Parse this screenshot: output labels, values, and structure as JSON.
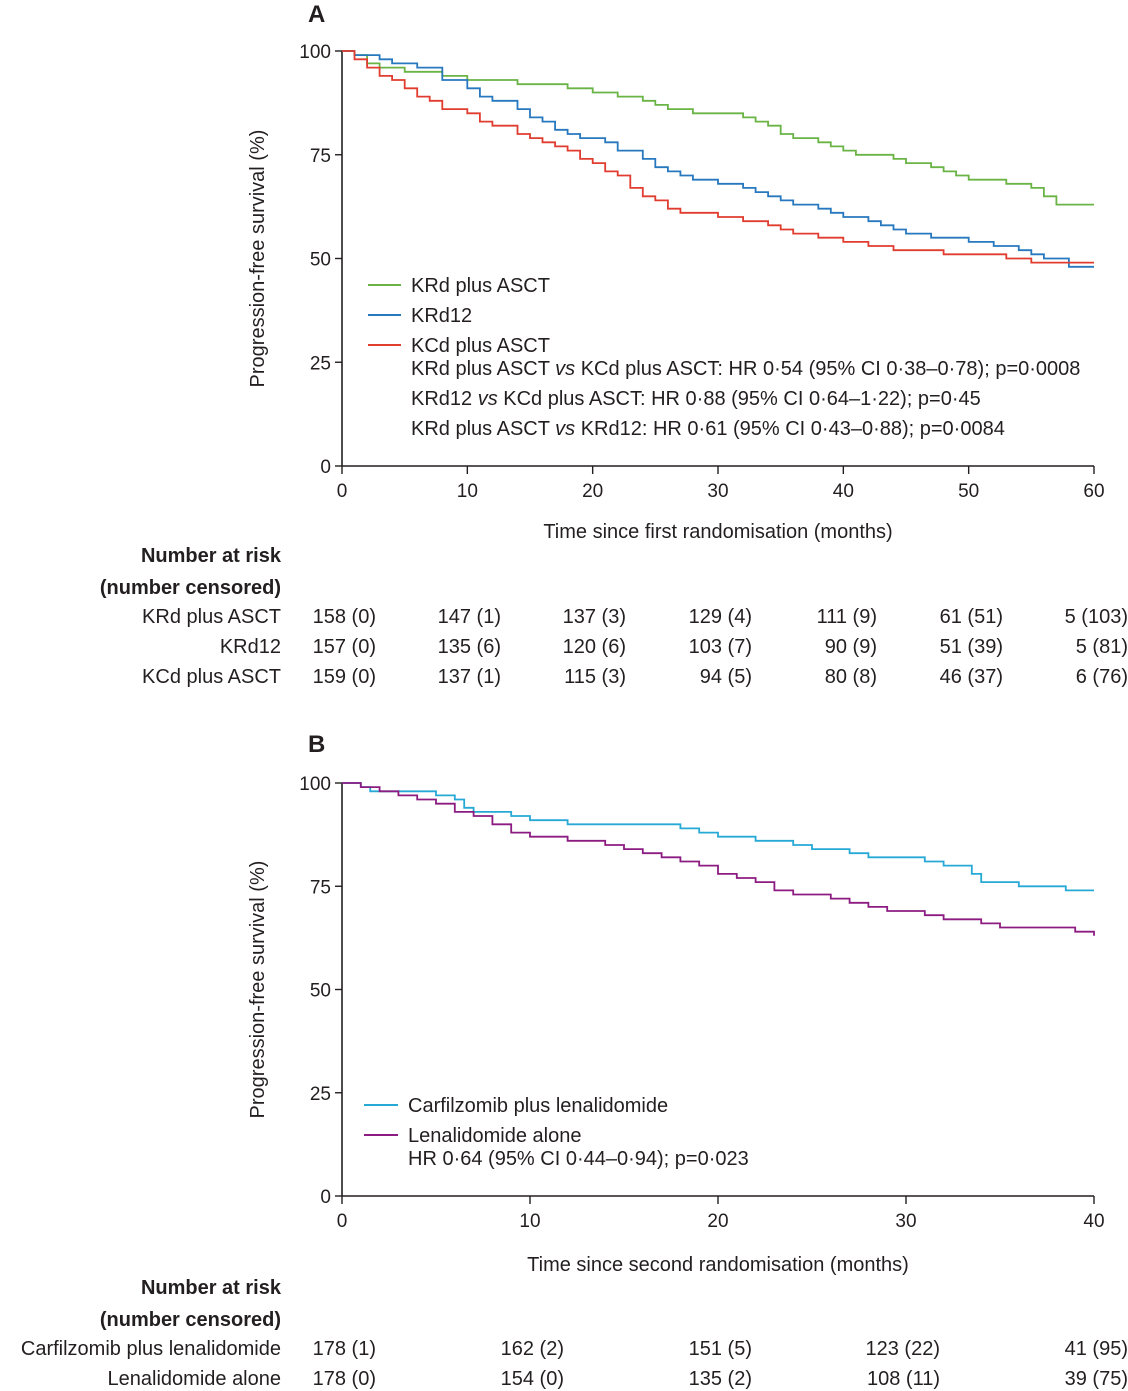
{
  "chart_data": [
    {
      "panel": "A",
      "type": "line",
      "step": true,
      "xlabel": "Time since first randomisation (months)",
      "ylabel": "Progression-free survival (%)",
      "xlim": [
        0,
        60
      ],
      "ylim": [
        0,
        100
      ],
      "xticks": [
        0,
        10,
        20,
        30,
        40,
        50,
        60
      ],
      "yticks": [
        0,
        25,
        50,
        75,
        100
      ],
      "series": [
        {
          "name": "KRd plus ASCT",
          "color": "#6ab345",
          "x": [
            0,
            1,
            2,
            3,
            4,
            5,
            6,
            8,
            10,
            12,
            14,
            16,
            18,
            20,
            22,
            24,
            25,
            26,
            27,
            28,
            30,
            32,
            33,
            34,
            35,
            36,
            37,
            38,
            39,
            40,
            41,
            42,
            44,
            45,
            46,
            47,
            48,
            49,
            50,
            52,
            53,
            54,
            55,
            56,
            57,
            58,
            60
          ],
          "y": [
            100,
            99,
            97,
            96,
            96,
            95,
            95,
            94,
            93,
            93,
            92,
            92,
            91,
            90,
            89,
            88,
            87,
            86,
            86,
            85,
            85,
            84,
            83,
            82,
            80,
            79,
            79,
            78,
            77,
            76,
            75,
            75,
            74,
            73,
            73,
            72,
            71,
            70,
            69,
            69,
            68,
            68,
            67,
            65,
            63,
            63,
            63
          ]
        },
        {
          "name": "KRd12",
          "color": "#2778be",
          "x": [
            0,
            1,
            2,
            3,
            4,
            6,
            8,
            10,
            11,
            12,
            14,
            15,
            16,
            17,
            18,
            19,
            20,
            21,
            22,
            23,
            24,
            25,
            26,
            27,
            28,
            30,
            32,
            33,
            34,
            35,
            36,
            38,
            39,
            40,
            42,
            43,
            44,
            45,
            46,
            47,
            48,
            50,
            52,
            54,
            55,
            56,
            58,
            60
          ],
          "y": [
            100,
            99,
            99,
            98,
            97,
            96,
            93,
            91,
            89,
            88,
            86,
            84,
            83,
            81,
            80,
            79,
            79,
            78,
            76,
            76,
            74,
            72,
            71,
            70,
            69,
            68,
            67,
            66,
            65,
            64,
            63,
            62,
            61,
            60,
            59,
            58,
            57,
            56,
            56,
            55,
            55,
            54,
            53,
            52,
            51,
            50,
            48,
            48
          ]
        },
        {
          "name": "KCd plus ASCT",
          "color": "#e03c2f",
          "x": [
            0,
            1,
            2,
            3,
            4,
            5,
            6,
            7,
            8,
            10,
            11,
            12,
            14,
            15,
            16,
            17,
            18,
            19,
            20,
            21,
            22,
            23,
            24,
            25,
            26,
            27,
            28,
            30,
            31,
            32,
            33,
            34,
            35,
            36,
            37,
            38,
            40,
            41,
            42,
            43,
            44,
            45,
            46,
            48,
            50,
            52,
            53,
            54,
            55,
            56,
            58,
            60
          ],
          "y": [
            100,
            98,
            96,
            94,
            93,
            91,
            89,
            88,
            86,
            85,
            83,
            82,
            80,
            79,
            78,
            77,
            76,
            74,
            73,
            71,
            70,
            67,
            65,
            64,
            62,
            61,
            61,
            60,
            60,
            59,
            59,
            58,
            57,
            56,
            56,
            55,
            54,
            54,
            53,
            53,
            52,
            52,
            52,
            51,
            51,
            51,
            50,
            50,
            49,
            49,
            49,
            49
          ]
        }
      ],
      "legend": [
        "KRd plus ASCT",
        "KRd12",
        "KCd plus ASCT"
      ],
      "annotations": [
        {
          "text": "KRd plus ASCT ",
          "italic": "vs",
          "text2": " KCd plus ASCT: HR 0·54 (95% CI 0·38–0·78); p=0·0008"
        },
        {
          "text": "KRd12 ",
          "italic": "vs",
          "text2": " KCd plus ASCT: HR 0·88 (95% CI 0·64–1·22); p=0·45"
        },
        {
          "text": "KRd plus ASCT ",
          "italic": "vs",
          "text2": " KRd12: HR 0·61 (95% CI 0·43–0·88); p=0·0084"
        }
      ],
      "risk_table": {
        "heading": [
          "Number at risk",
          "(number censored)"
        ],
        "rows": [
          {
            "label": "KRd plus ASCT",
            "values": [
              "158 (0)",
              "147 (1)",
              "137 (3)",
              "129 (4)",
              "111 (9)",
              "61 (51)",
              "5 (103)"
            ]
          },
          {
            "label": "KRd12",
            "values": [
              "157 (0)",
              "135 (6)",
              "120 (6)",
              "103 (7)",
              "90 (9)",
              "51 (39)",
              "5 (81)"
            ]
          },
          {
            "label": "KCd plus ASCT",
            "values": [
              "159 (0)",
              "137 (1)",
              "115 (3)",
              "94 (5)",
              "80 (8)",
              "46 (37)",
              "6 (76)"
            ]
          }
        ]
      }
    },
    {
      "panel": "B",
      "type": "line",
      "step": true,
      "xlabel": "Time since second randomisation (months)",
      "ylabel": "Progression-free survival (%)",
      "xlim": [
        0,
        40
      ],
      "ylim": [
        0,
        100
      ],
      "xticks": [
        0,
        10,
        20,
        30,
        40
      ],
      "yticks": [
        0,
        25,
        50,
        75,
        100
      ],
      "series": [
        {
          "name": "Carfilzomib plus lenalidomide",
          "color": "#27a9d6",
          "x": [
            0,
            1,
            1.5,
            2,
            4,
            5,
            6,
            6.5,
            7,
            8,
            9,
            10,
            12,
            14,
            16,
            18,
            19,
            20,
            21,
            22,
            23,
            24,
            25,
            26,
            27,
            28,
            29,
            30,
            31,
            32,
            33,
            33.5,
            34,
            36,
            38,
            38.5,
            40
          ],
          "y": [
            100,
            99,
            98,
            98,
            98,
            97,
            96,
            94,
            93,
            93,
            92,
            91,
            90,
            90,
            90,
            89,
            88,
            87,
            87,
            86,
            86,
            85,
            84,
            84,
            83,
            82,
            82,
            82,
            81,
            80,
            80,
            78,
            76,
            75,
            75,
            74,
            74
          ]
        },
        {
          "name": "Lenalidomide alone",
          "color": "#8c1c82",
          "x": [
            0,
            1,
            2,
            3,
            4,
            5,
            6,
            7,
            8,
            9,
            10,
            12,
            14,
            15,
            16,
            17,
            18,
            19,
            20,
            21,
            22,
            23,
            24,
            25,
            26,
            27,
            28,
            29,
            30,
            31,
            32,
            33,
            34,
            35,
            36,
            38,
            39,
            40
          ],
          "y": [
            100,
            99,
            98,
            97,
            96,
            95,
            93,
            92,
            90,
            88,
            87,
            86,
            85,
            84,
            83,
            82,
            81,
            80,
            78,
            77,
            76,
            74,
            73,
            73,
            72,
            71,
            70,
            69,
            69,
            68,
            67,
            67,
            66,
            65,
            65,
            65,
            64,
            63
          ]
        }
      ],
      "legend": [
        "Carfilzomib plus lenalidomide",
        "Lenalidomide alone"
      ],
      "annotations": [
        {
          "text": "HR 0·64 (95% CI 0·44–0·94); p=0·023"
        }
      ],
      "risk_table": {
        "heading": [
          "Number at risk",
          "(number censored)"
        ],
        "rows": [
          {
            "label": "Carfilzomib plus lenalidomide",
            "values": [
              "178 (1)",
              "162 (2)",
              "151 (5)",
              "123 (22)",
              "41 (95)"
            ]
          },
          {
            "label": "Lenalidomide alone",
            "values": [
              "178 (0)",
              "154 (0)",
              "135 (2)",
              "108 (11)",
              "39 (75)"
            ]
          }
        ]
      }
    }
  ]
}
